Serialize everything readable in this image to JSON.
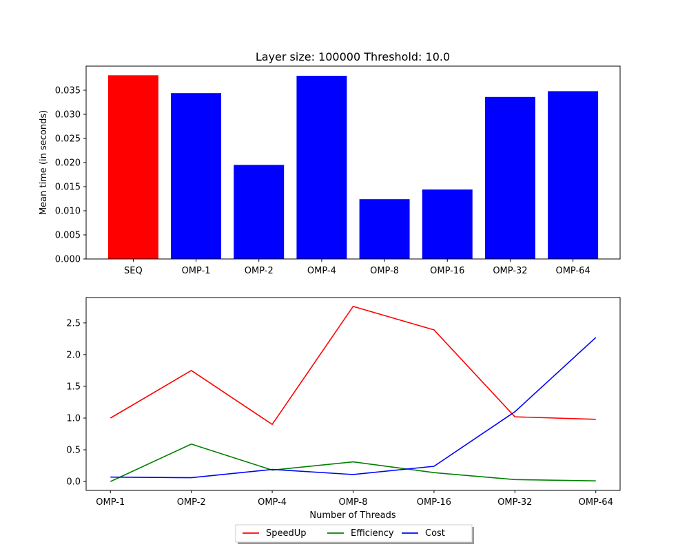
{
  "chart_data": [
    {
      "type": "bar",
      "title": "Layer size: 100000 Threshold: 10.0",
      "xlabel": "",
      "ylabel": "Mean time (in seconds)",
      "categories": [
        "SEQ",
        "OMP-1",
        "OMP-2",
        "OMP-4",
        "OMP-8",
        "OMP-16",
        "OMP-32",
        "OMP-64"
      ],
      "values": [
        0.0381,
        0.0344,
        0.0195,
        0.038,
        0.0124,
        0.0144,
        0.0336,
        0.0348
      ],
      "bar_colors": [
        "#ff0000",
        "#0000ff",
        "#0000ff",
        "#0000ff",
        "#0000ff",
        "#0000ff",
        "#0000ff",
        "#0000ff"
      ],
      "ylim": [
        0,
        0.04
      ],
      "yticks": [
        0.0,
        0.005,
        0.01,
        0.015,
        0.02,
        0.025,
        0.03,
        0.035
      ],
      "ytick_labels": [
        "0.000",
        "0.005",
        "0.010",
        "0.015",
        "0.020",
        "0.025",
        "0.030",
        "0.035"
      ],
      "grid": false
    },
    {
      "type": "line",
      "title": "",
      "xlabel": "Number of Threads",
      "ylabel": "",
      "categories": [
        "OMP-1",
        "OMP-2",
        "OMP-4",
        "OMP-8",
        "OMP-16",
        "OMP-32",
        "OMP-64"
      ],
      "series": [
        {
          "name": "SpeedUp",
          "color": "#ff0000",
          "values": [
            1.0,
            1.75,
            0.9,
            2.76,
            2.39,
            1.02,
            0.98
          ]
        },
        {
          "name": "Efficiency",
          "color": "#008000",
          "values": [
            0.0,
            0.59,
            0.18,
            0.31,
            0.14,
            0.03,
            0.01
          ]
        },
        {
          "name": "Cost",
          "color": "#0000ff",
          "values": [
            0.07,
            0.06,
            0.19,
            0.11,
            0.24,
            1.1,
            2.27
          ]
        }
      ],
      "ylim": [
        -0.14,
        2.9
      ],
      "yticks": [
        0.0,
        0.5,
        1.0,
        1.5,
        2.0,
        2.5
      ],
      "ytick_labels": [
        "0.0",
        "0.5",
        "1.0",
        "1.5",
        "2.0",
        "2.5"
      ],
      "legend": "bottom-center",
      "grid": false
    }
  ]
}
